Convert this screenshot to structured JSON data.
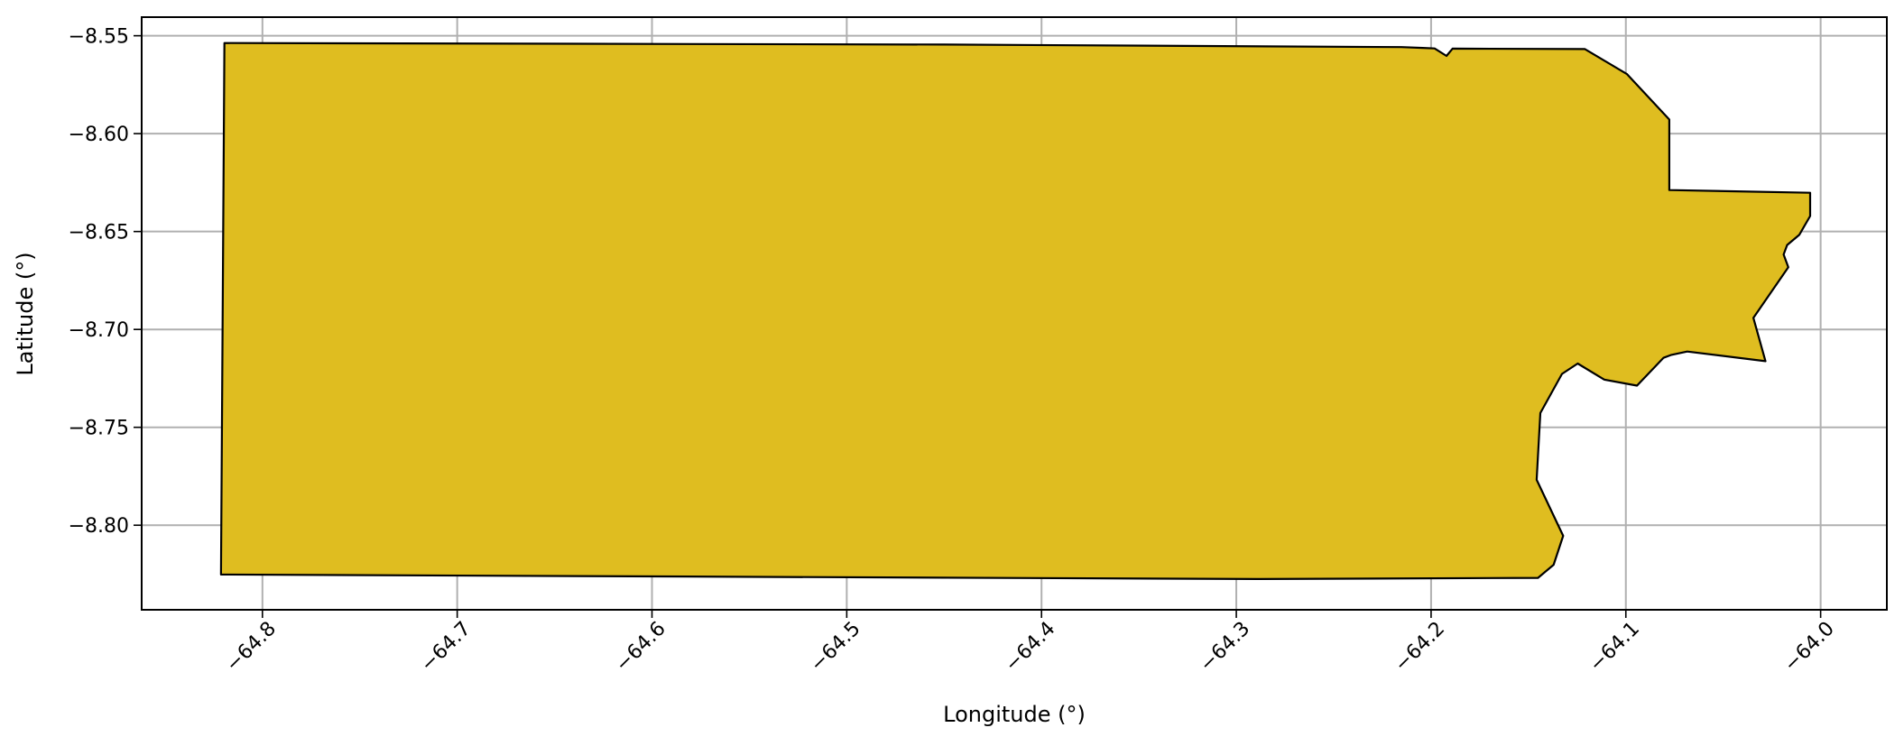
{
  "map": {
    "type": "polygon",
    "xlabel": "Longitude (°)",
    "ylabel": "Latitude (°)",
    "xlim": [
      -64.862,
      -63.966
    ],
    "ylim": [
      -8.8432,
      -8.5405
    ],
    "grid": true,
    "fill_color": "#DFBD20",
    "edge_color": "#000000",
    "grid_color": "#B0B0B0",
    "xticks": [
      {
        "value": -64.8,
        "label": "−64.8"
      },
      {
        "value": -64.7,
        "label": "−64.7"
      },
      {
        "value": -64.6,
        "label": "−64.6"
      },
      {
        "value": -64.5,
        "label": "−64.5"
      },
      {
        "value": -64.4,
        "label": "−64.4"
      },
      {
        "value": -64.3,
        "label": "−64.3"
      },
      {
        "value": -64.2,
        "label": "−64.2"
      },
      {
        "value": -64.1,
        "label": "−64.1"
      },
      {
        "value": -64.0,
        "label": "−64.0"
      }
    ],
    "yticks": [
      {
        "value": -8.55,
        "label": "−8.55"
      },
      {
        "value": -8.6,
        "label": "−8.60"
      },
      {
        "value": -8.65,
        "label": "−8.65"
      },
      {
        "value": -8.7,
        "label": "−8.70"
      },
      {
        "value": -8.75,
        "label": "−8.75"
      },
      {
        "value": -8.8,
        "label": "−8.80"
      }
    ],
    "polygon": [
      [
        -64.8195,
        -8.5537
      ],
      [
        -64.45,
        -8.5545
      ],
      [
        -64.2153,
        -8.5558
      ],
      [
        -64.2043,
        -8.5562
      ],
      [
        -64.1982,
        -8.5565
      ],
      [
        -64.1921,
        -8.5603
      ],
      [
        -64.189,
        -8.5566
      ],
      [
        -64.121,
        -8.5568
      ],
      [
        -64.0994,
        -8.5696
      ],
      [
        -64.0777,
        -8.5928
      ],
      [
        -64.0777,
        -8.6288
      ],
      [
        -64.0054,
        -8.6302
      ],
      [
        -64.0054,
        -8.6421
      ],
      [
        -64.011,
        -8.6517
      ],
      [
        -64.0172,
        -8.6569
      ],
      [
        -64.019,
        -8.6617
      ],
      [
        -64.0166,
        -8.6682
      ],
      [
        -64.0345,
        -8.6941
      ],
      [
        -64.0283,
        -8.7162
      ],
      [
        -64.0685,
        -8.7113
      ],
      [
        -64.0769,
        -8.7131
      ],
      [
        -64.0807,
        -8.7145
      ],
      [
        -64.0943,
        -8.7287
      ],
      [
        -64.1111,
        -8.7256
      ],
      [
        -64.1247,
        -8.7174
      ],
      [
        -64.1328,
        -8.7227
      ],
      [
        -64.1439,
        -8.7427
      ],
      [
        -64.1458,
        -8.7768
      ],
      [
        -64.1322,
        -8.8054
      ],
      [
        -64.1371,
        -8.8202
      ],
      [
        -64.1451,
        -8.8269
      ],
      [
        -64.29,
        -8.8275
      ],
      [
        -64.8213,
        -8.8252
      ]
    ]
  }
}
